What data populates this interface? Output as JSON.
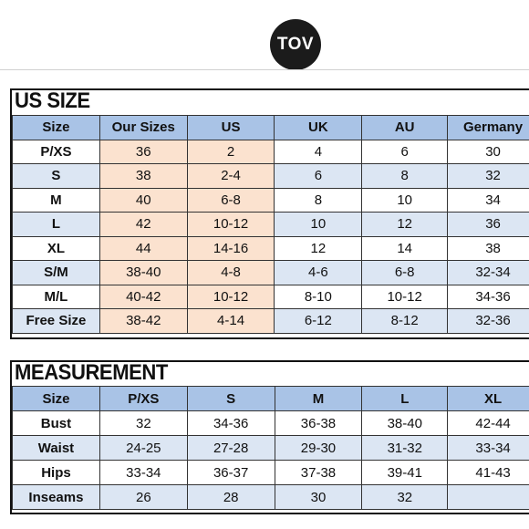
{
  "brand": {
    "logo_text": "TOV"
  },
  "us_size": {
    "title": "US SIZE",
    "headers": [
      "Size",
      "Our Sizes",
      "US",
      "UK",
      "AU",
      "Germany"
    ],
    "rows": [
      [
        "P/XS",
        "36",
        "2",
        "4",
        "6",
        "30"
      ],
      [
        "S",
        "38",
        "2-4",
        "6",
        "8",
        "32"
      ],
      [
        "M",
        "40",
        "6-8",
        "8",
        "10",
        "34"
      ],
      [
        "L",
        "42",
        "10-12",
        "10",
        "12",
        "36"
      ],
      [
        "XL",
        "44",
        "14-16",
        "12",
        "14",
        "38"
      ],
      [
        "S/M",
        "38-40",
        "4-8",
        "4-6",
        "6-8",
        "32-34"
      ],
      [
        "M/L",
        "40-42",
        "10-12",
        "8-10",
        "10-12",
        "34-36"
      ],
      [
        "Free Size",
        "38-42",
        "4-14",
        "6-12",
        "8-12",
        "32-36"
      ]
    ]
  },
  "measurement": {
    "title": "MEASUREMENT",
    "headers": [
      "Size",
      "P/XS",
      "S",
      "M",
      "L",
      "XL"
    ],
    "rows": [
      [
        "Bust",
        "32",
        "34-36",
        "36-38",
        "38-40",
        "42-44"
      ],
      [
        "Waist",
        "24-25",
        "27-28",
        "29-30",
        "31-32",
        "33-34"
      ],
      [
        "Hips",
        "33-34",
        "36-37",
        "37-38",
        "39-41",
        "41-43"
      ],
      [
        "Inseams",
        "26",
        "28",
        "30",
        "32",
        ""
      ]
    ]
  },
  "colors": {
    "header_blue": "#a9c3e6",
    "alt_row_blue": "#dce6f3",
    "highlight_peach": "#fbe2cf"
  }
}
